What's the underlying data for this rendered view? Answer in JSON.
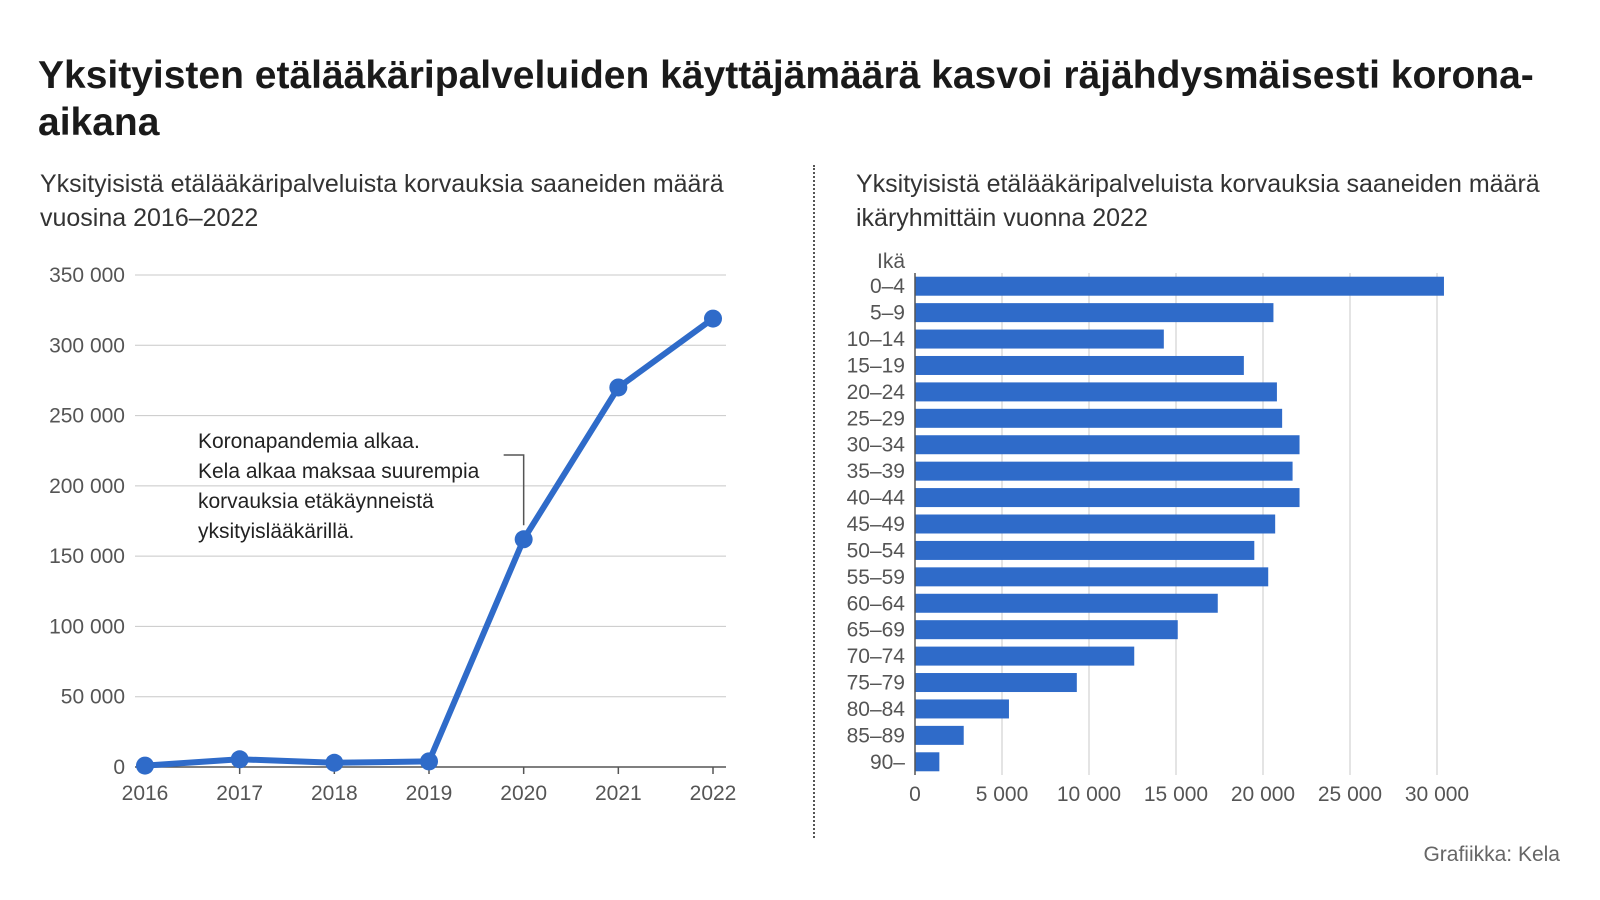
{
  "title": "Yksityisten etälääkäripalveluiden käyttäjämäärä kasvoi räjähdysmäisesti korona-aikana",
  "credit": "Grafiikka: Kela",
  "colors": {
    "accent": "#2f6bc9",
    "grid": "#c8c8c8",
    "axis": "#555555"
  },
  "chart_data": [
    {
      "type": "line",
      "title": "Yksityisistä etälääkäripalveluista korvauksia saaneiden määrä vuosina 2016–2022",
      "x": [
        "2016",
        "2017",
        "2018",
        "2019",
        "2020",
        "2021",
        "2022"
      ],
      "values": [
        1000,
        5500,
        3000,
        4000,
        162000,
        270000,
        319000
      ],
      "ylim": [
        0,
        350000
      ],
      "yticks": [
        "0",
        "50 000",
        "100 000",
        "150 000",
        "200 000",
        "250 000",
        "300 000",
        "350 000"
      ],
      "grid": true,
      "annotation": {
        "x": "2020",
        "lines": [
          "Koronapandemia alkaa.",
          "Kela alkaa maksaa suurempia",
          "korvauksia etäkäynneistä",
          "yksityislääkärillä."
        ]
      }
    },
    {
      "type": "bar",
      "orientation": "horizontal",
      "title": "Yksityisistä etälääkäripalveluista korvauksia saaneiden määrä ikäryhmittäin vuonna 2022",
      "ylabel": "Ikä",
      "categories": [
        "0–4",
        "5–9",
        "10–14",
        "15–19",
        "20–24",
        "25–29",
        "30–34",
        "35–39",
        "40–44",
        "45–49",
        "50–54",
        "55–59",
        "60–64",
        "65–69",
        "70–74",
        "75–79",
        "80–84",
        "85–89",
        "90–"
      ],
      "values": [
        30400,
        20600,
        14300,
        18900,
        20800,
        21100,
        22100,
        21700,
        22100,
        20700,
        19500,
        20300,
        17400,
        15100,
        12600,
        9300,
        5400,
        2800,
        1400
      ],
      "xlim": [
        0,
        31000
      ],
      "xticks": [
        "0",
        "5 000",
        "10 000",
        "15 000",
        "20 000",
        "25 000",
        "30 000"
      ],
      "grid": true
    }
  ]
}
